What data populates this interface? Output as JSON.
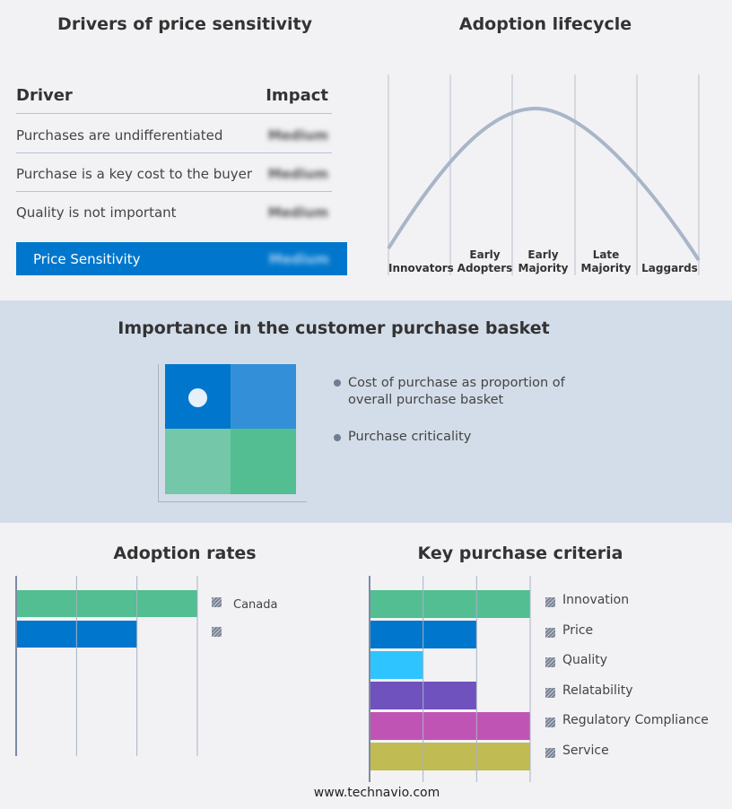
{
  "drivers": {
    "title": "Drivers of price sensitivity",
    "col_driver": "Driver",
    "col_impact": "Impact",
    "rows": [
      {
        "driver": "Purchases are undifferentiated",
        "impact": "Medium"
      },
      {
        "driver": "Purchase is a key cost to the buyer",
        "impact": "Medium"
      },
      {
        "driver": "Quality is not important",
        "impact": "Medium"
      }
    ],
    "summary": {
      "label": "Price Sensitivity",
      "impact": "Medium"
    },
    "accent": "#0077cc"
  },
  "lifecycle": {
    "title": "Adoption lifecycle",
    "stages": [
      "Innovators",
      "Early Adopters",
      "Early Majority",
      "Late Majority",
      "Laggards"
    ],
    "curve_color": "#a9b5c8"
  },
  "basket": {
    "title": "Importance in the customer purchase basket",
    "legend": [
      "Cost of purchase as proportion of overall purchase basket",
      "Purchase criticality"
    ],
    "quadrant_colors": [
      "#0077cc",
      "#3390d8",
      "#74c7a8",
      "#52be91"
    ]
  },
  "footer": "www.technavio.com",
  "chart_data": [
    {
      "type": "bar",
      "orientation": "horizontal",
      "title": "Adoption rates",
      "categories": [
        "Canada",
        ""
      ],
      "values": [
        3,
        2
      ],
      "colors": [
        "#52be91",
        "#0077cc"
      ],
      "xlim": [
        0,
        3
      ],
      "grid": true,
      "legend": "right"
    },
    {
      "type": "bar",
      "orientation": "horizontal",
      "title": "Key purchase criteria",
      "categories": [
        "Innovation",
        "Price",
        "Quality",
        "Relatability",
        "Regulatory Compliance",
        "Service"
      ],
      "values": [
        3,
        2,
        1,
        2,
        3,
        3
      ],
      "colors": [
        "#52be91",
        "#0077cc",
        "#2ec4ff",
        "#6f52bd",
        "#c054b4",
        "#c0bb52"
      ],
      "xlim": [
        0,
        3
      ],
      "grid": true,
      "legend": "right"
    }
  ]
}
